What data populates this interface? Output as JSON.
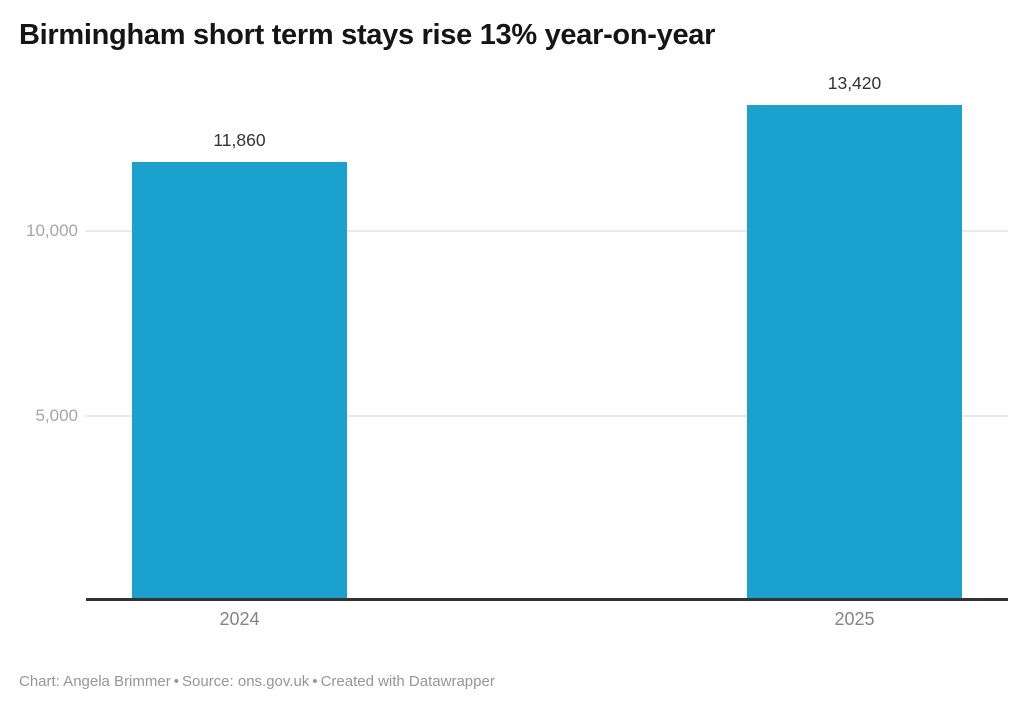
{
  "title": "Birmingham short term stays rise 13% year-on-year",
  "chart_data": {
    "type": "bar",
    "title": "Birmingham short term stays rise 13% year-on-year",
    "categories": [
      "2024",
      "2025"
    ],
    "values": [
      11860,
      13420
    ],
    "value_labels": [
      "11,860",
      "13,420"
    ],
    "xlabel": "",
    "ylabel": "",
    "ylim": [
      0,
      13420
    ],
    "yticks": [
      {
        "value": 5000,
        "label": "5,000"
      },
      {
        "value": 10000,
        "label": "10,000"
      }
    ],
    "grid": "horizontal",
    "legend": "none",
    "bar_color": "#1aa1cd"
  },
  "footer": {
    "chart_credit": "Chart: Angela Brimmer",
    "separator": "•",
    "source": "Source: ons.gov.uk",
    "created_with": "Created with Datawrapper"
  },
  "colors": {
    "bar": "#1aa1cd",
    "title": "#151515",
    "value_label": "#333333",
    "y_tick_label": "#a6a6a6",
    "x_tick_label": "#848484",
    "footer_text": "#969696",
    "gridline": "#e9e9e9",
    "axis_line": "#333333",
    "background": "#ffffff"
  }
}
